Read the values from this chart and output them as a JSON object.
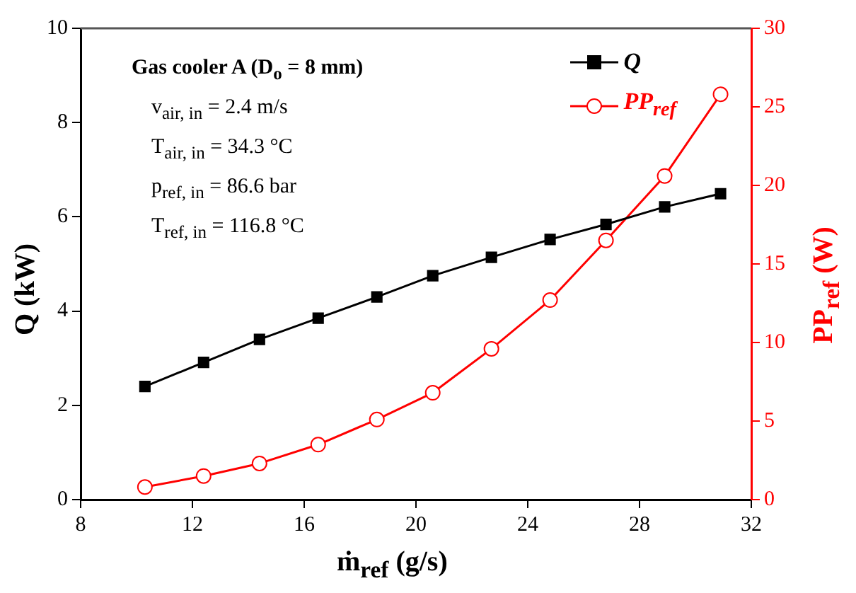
{
  "chart_data": {
    "type": "line",
    "xlabel": "ṁ$_{ref}$ (g/s)",
    "ylabel": "Q (kW)",
    "y2label": "PP$_{ref}$ (W)",
    "x": [
      10.3,
      12.4,
      14.4,
      16.5,
      18.6,
      20.6,
      22.7,
      24.8,
      26.8,
      28.9,
      30.9
    ],
    "series": [
      {
        "name": "Q",
        "color": "#000000",
        "marker": "square",
        "values": [
          2.4,
          2.91,
          3.4,
          3.85,
          4.3,
          4.75,
          5.14,
          5.52,
          5.84,
          6.21,
          6.49
        ]
      },
      {
        "name": "PP$_{ref}$",
        "color": "#ff0000",
        "marker": "circle",
        "axis": "y2",
        "values": [
          0.8,
          1.5,
          2.3,
          3.5,
          5.1,
          6.8,
          9.6,
          12.7,
          16.5,
          20.6,
          25.8
        ]
      }
    ],
    "xlim": [
      8,
      32
    ],
    "xticks": [
      8,
      12,
      16,
      20,
      24,
      28,
      32
    ],
    "ylim": [
      0,
      10
    ],
    "yticks": [
      0,
      2,
      4,
      6,
      8,
      10
    ],
    "y2lim": [
      0,
      30
    ],
    "y2ticks": [
      0,
      5,
      10,
      15,
      20,
      25,
      30
    ],
    "grid": false,
    "legend": "top right",
    "annotations": [
      "Gas cooler A (D$_{o}$ = 8 mm)",
      "v$_{air, in}$ = 2.4 m/s",
      "T$_{air, in}$ = 34.3 °C",
      "p$_{ref, in}$ = 86.6 bar",
      "T$_{ref, in}$ = 116.8 °C"
    ]
  }
}
